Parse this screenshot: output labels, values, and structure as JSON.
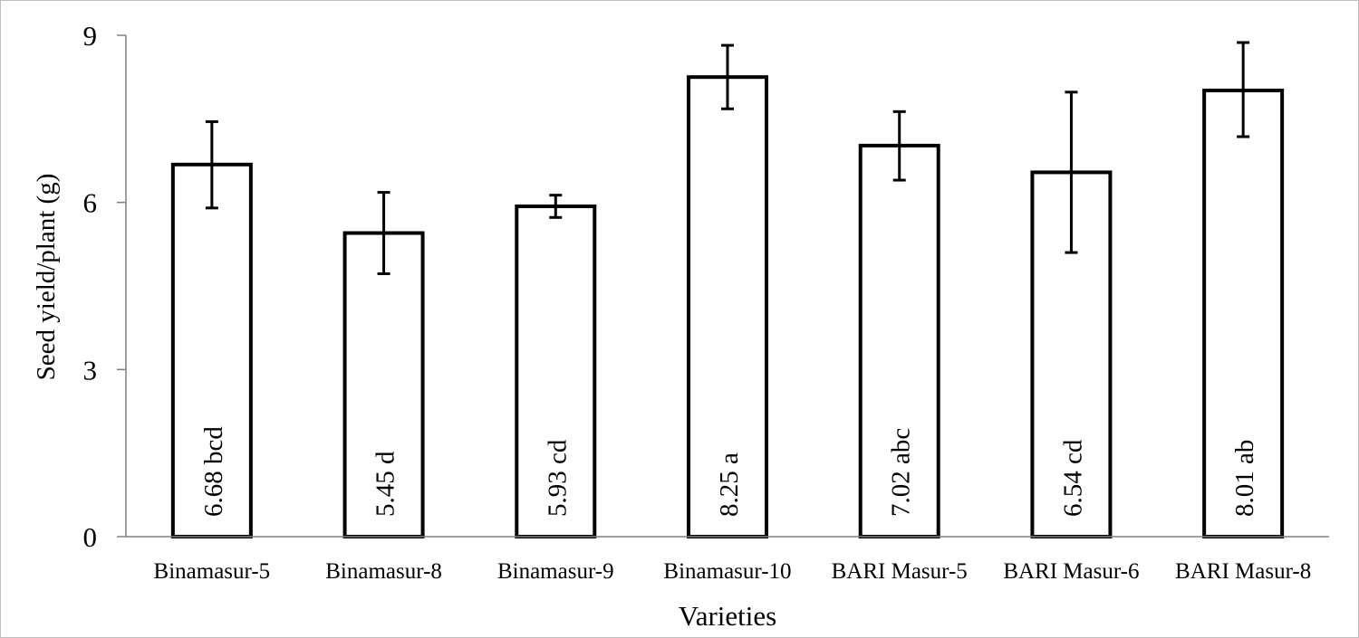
{
  "chart_data": {
    "type": "bar",
    "title": "",
    "xlabel": "Varieties",
    "ylabel": "Seed yield/plant (g)",
    "ylim": [
      0,
      9
    ],
    "yticks": [
      "0",
      "3",
      "6",
      "9"
    ],
    "grid": false,
    "legend": "none",
    "categories": [
      "Binamasur-5",
      "Binamasur-8",
      "Binamasur-9",
      "Binamasur-10",
      "BARI Masur-5",
      "BARI Masur-6",
      "BARI Masur-8"
    ],
    "values": [
      6.68,
      5.45,
      5.93,
      8.25,
      7.02,
      6.54,
      8.01
    ],
    "error_low": [
      5.9,
      4.72,
      5.73,
      7.68,
      6.4,
      5.1,
      7.18
    ],
    "error_high": [
      7.45,
      6.18,
      6.13,
      8.82,
      7.63,
      7.98,
      8.87
    ],
    "data_labels": [
      "6.68 bcd",
      "5.45 d",
      "5.93 cd",
      "8.25 a",
      "7.02 abc",
      "6.54 cd",
      "8.01 ab"
    ],
    "colors": {
      "bar_fill": "#ffffff",
      "bar_stroke": "#000000",
      "axis": "#808080",
      "error_bar": "#000000"
    }
  }
}
